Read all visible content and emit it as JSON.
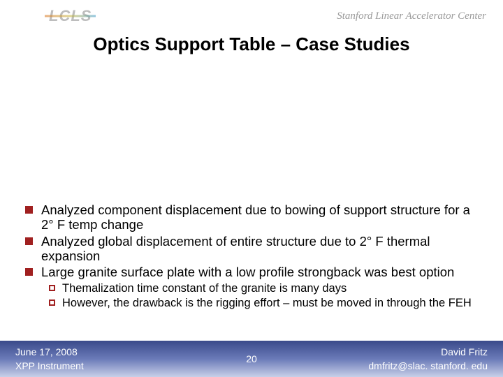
{
  "header": {
    "logo_left": "LCLS",
    "logo_right": "Stanford Linear Accelerator Center"
  },
  "title": "Optics Support Table – Case Studies",
  "bullets": {
    "main": [
      "Analyzed component displacement due to bowing of support structure for a 2° F temp change",
      "Analyzed global displacement of entire structure due to 2° F thermal expansion",
      "Large granite surface plate with a low profile strongback was best option"
    ],
    "sub": [
      "Themalization time constant of the granite is many days",
      "However, the drawback is the rigging effort – must be moved in through the FEH"
    ]
  },
  "footer": {
    "date": "June 17, 2008",
    "instrument": "XPP Instrument",
    "page": "20",
    "author": "David Fritz",
    "email": "dmfritz@slac. stanford. edu"
  },
  "colors": {
    "bullet": "#a02020",
    "footer_grad_top": "#3a4a8a",
    "footer_grad_bottom": "#c8d0e8",
    "title_color": "#000000",
    "logo_gray": "#9a9a9a"
  },
  "fonts": {
    "title_size": 26,
    "main_bullet_size": 18.5,
    "sub_bullet_size": 16.5,
    "footer_size": 14
  }
}
